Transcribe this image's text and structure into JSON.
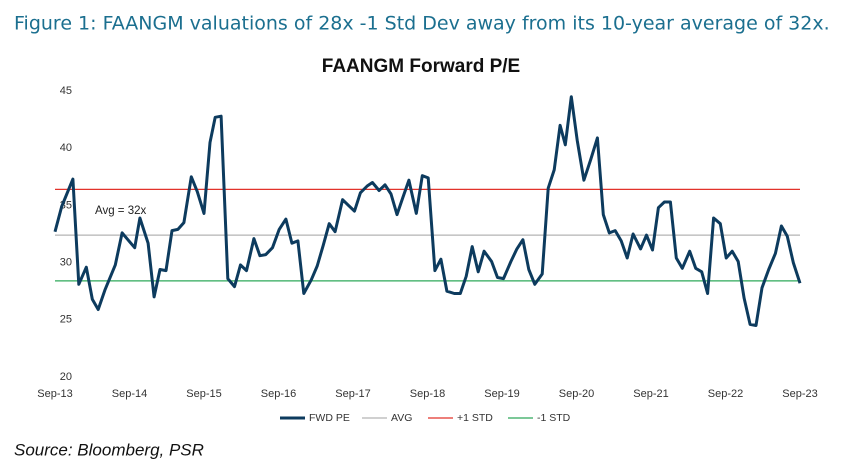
{
  "caption": "Figure 1: FAANGM valuations of 28x -1 Std Dev away from its 10-year average of 32x.",
  "source": "Source: Bloomberg, PSR",
  "chart_data": {
    "type": "line",
    "title": "FAANGM Forward P/E",
    "annotation": "Avg = 32x",
    "xlim": [
      2013.75,
      2023.75
    ],
    "xticks": [
      {
        "value": 2013.75,
        "label": "Sep-13"
      },
      {
        "value": 2014.75,
        "label": "Sep-14"
      },
      {
        "value": 2015.75,
        "label": "Sep-15"
      },
      {
        "value": 2016.75,
        "label": "Sep-16"
      },
      {
        "value": 2017.75,
        "label": "Sep-17"
      },
      {
        "value": 2018.75,
        "label": "Sep-18"
      },
      {
        "value": 2019.75,
        "label": "Sep-19"
      },
      {
        "value": 2020.75,
        "label": "Sep-20"
      },
      {
        "value": 2021.75,
        "label": "Sep-21"
      },
      {
        "value": 2022.75,
        "label": "Sep-22"
      },
      {
        "value": 2023.75,
        "label": "Sep-23"
      }
    ],
    "ylim": [
      20,
      45
    ],
    "yticks": [
      20,
      25,
      30,
      35,
      40,
      45
    ],
    "grid": false,
    "series": [
      {
        "name": "FWD PE",
        "color": "#0d3b5e",
        "x": [
          2013.75,
          2013.84,
          2013.99,
          2014.07,
          2014.17,
          2014.25,
          2014.33,
          2014.42,
          2014.56,
          2014.65,
          2014.82,
          2014.89,
          2015.0,
          2015.08,
          2015.16,
          2015.24,
          2015.32,
          2015.4,
          2015.48,
          2015.58,
          2015.66,
          2015.75,
          2015.83,
          2015.9,
          2015.98,
          2016.07,
          2016.16,
          2016.24,
          2016.32,
          2016.42,
          2016.5,
          2016.58,
          2016.67,
          2016.76,
          2016.85,
          2016.93,
          2017.01,
          2017.09,
          2017.19,
          2017.27,
          2017.35,
          2017.43,
          2017.51,
          2017.61,
          2017.69,
          2017.77,
          2017.85,
          2017.94,
          2018.01,
          2018.1,
          2018.18,
          2018.26,
          2018.34,
          2018.42,
          2018.5,
          2018.6,
          2018.68,
          2018.76,
          2018.85,
          2018.93,
          2019.01,
          2019.11,
          2019.19,
          2019.27,
          2019.35,
          2019.43,
          2019.51,
          2019.61,
          2019.69,
          2019.77,
          2019.87,
          2019.95,
          2020.03,
          2020.11,
          2020.19,
          2020.29,
          2020.37,
          2020.45,
          2020.53,
          2020.6,
          2020.68,
          2020.76,
          2020.85,
          2020.94,
          2021.03,
          2021.11,
          2021.19,
          2021.27,
          2021.35,
          2021.43,
          2021.51,
          2021.61,
          2021.69,
          2021.77,
          2021.85,
          2021.93,
          2022.01,
          2022.09,
          2022.17,
          2022.27,
          2022.35,
          2022.43,
          2022.51,
          2022.59,
          2022.68,
          2022.76,
          2022.84,
          2022.92,
          2023.0,
          2023.08,
          2023.16,
          2023.24,
          2023.33,
          2023.42,
          2023.5,
          2023.58,
          2023.66,
          2023.75
        ],
        "values": [
          32.7,
          34.9,
          37.3,
          28.1,
          29.6,
          26.8,
          25.9,
          27.6,
          29.8,
          32.6,
          31.3,
          33.9,
          31.7,
          27.0,
          29.4,
          29.3,
          32.8,
          32.9,
          33.5,
          37.5,
          36.2,
          34.3,
          40.5,
          42.7,
          42.8,
          28.6,
          27.9,
          29.8,
          29.3,
          32.1,
          30.6,
          30.7,
          31.3,
          32.9,
          33.8,
          31.7,
          31.9,
          27.3,
          28.5,
          29.7,
          31.5,
          33.4,
          32.7,
          35.5,
          35.0,
          34.5,
          36.1,
          36.7,
          37.0,
          36.3,
          36.8,
          36.0,
          34.2,
          35.7,
          37.2,
          34.3,
          37.6,
          37.4,
          29.3,
          30.3,
          27.5,
          27.3,
          27.3,
          28.8,
          31.4,
          29.2,
          31.0,
          30.1,
          28.7,
          28.6,
          30.1,
          31.2,
          32.0,
          29.4,
          28.1,
          29.0,
          36.5,
          38.1,
          42.0,
          40.3,
          44.5,
          40.7,
          37.2,
          39.0,
          40.9,
          34.2,
          32.6,
          32.8,
          31.9,
          30.4,
          32.5,
          31.2,
          32.4,
          31.1,
          34.8,
          35.3,
          35.3,
          30.4,
          29.5,
          31.0,
          29.5,
          29.2,
          27.3,
          33.9,
          33.4,
          30.4,
          31.0,
          30.1,
          26.9,
          24.6,
          24.5,
          27.8,
          29.4,
          30.8,
          33.2,
          32.3,
          30.0,
          28.2
        ]
      },
      {
        "name": "AVG",
        "color": "#b4b4b4",
        "x": [
          2013.75,
          2023.75
        ],
        "values": [
          32.4,
          32.4
        ]
      },
      {
        "name": "+1 STD",
        "color": "#e2332b",
        "x": [
          2013.75,
          2023.75
        ],
        "values": [
          36.4,
          36.4
        ]
      },
      {
        "name": "-1 STD",
        "color": "#2ea85a",
        "x": [
          2013.75,
          2023.75
        ],
        "values": [
          28.4,
          28.4
        ]
      }
    ]
  }
}
